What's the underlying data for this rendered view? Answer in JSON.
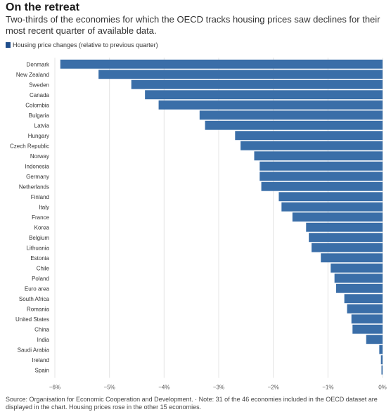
{
  "title": "On the retreat",
  "subtitle": "Two-thirds of the economies for which the OECD tracks housing prices saw declines for their most recent quarter of available data.",
  "legend_label": "Housing price changes (relative to previous quarter)",
  "source": "Source: Organisation for Economic Cooperation and Development. · Note: 31 of the 46 economies included in the OECD dataset are displayed in the chart. Housing prices rose in the other 15 economies.",
  "colors": {
    "bar": "#3a6ea8",
    "grid": "#e4e4e4",
    "legend": "#1f4e8c"
  },
  "chart_data": {
    "type": "bar",
    "orientation": "horizontal",
    "title": "",
    "xlabel": "",
    "ylabel": "",
    "xlim": [
      -6,
      0
    ],
    "x_ticks": [
      -6,
      -5,
      -4,
      -3,
      -2,
      -1,
      0
    ],
    "x_tick_labels": [
      "−6%",
      "−5%",
      "−4%",
      "−3%",
      "−2%",
      "−1%",
      "0%"
    ],
    "grid": true,
    "legend_position": "top-left",
    "series_name": "Housing price changes (relative to previous quarter)",
    "categories": [
      "Denmark",
      "New Zealand",
      "Sweden",
      "Canada",
      "Colombia",
      "Bulgaria",
      "Latvia",
      "Hungary",
      "Czech Republic",
      "Norway",
      "Indonesia",
      "Germany",
      "Netherlands",
      "Finland",
      "Italy",
      "France",
      "Korea",
      "Belgium",
      "Lithuania",
      "Estonia",
      "Chile",
      "Poland",
      "Euro area",
      "South Africa",
      "Romania",
      "United States",
      "China",
      "India",
      "Saudi Arabia",
      "Ireland",
      "Spain"
    ],
    "values": [
      -5.9,
      -5.2,
      -4.6,
      -4.35,
      -4.1,
      -3.35,
      -3.25,
      -2.7,
      -2.6,
      -2.35,
      -2.25,
      -2.25,
      -2.22,
      -1.9,
      -1.85,
      -1.65,
      -1.4,
      -1.35,
      -1.3,
      -1.13,
      -0.95,
      -0.88,
      -0.85,
      -0.7,
      -0.65,
      -0.57,
      -0.55,
      -0.3,
      -0.06,
      -0.03,
      -0.02
    ]
  }
}
